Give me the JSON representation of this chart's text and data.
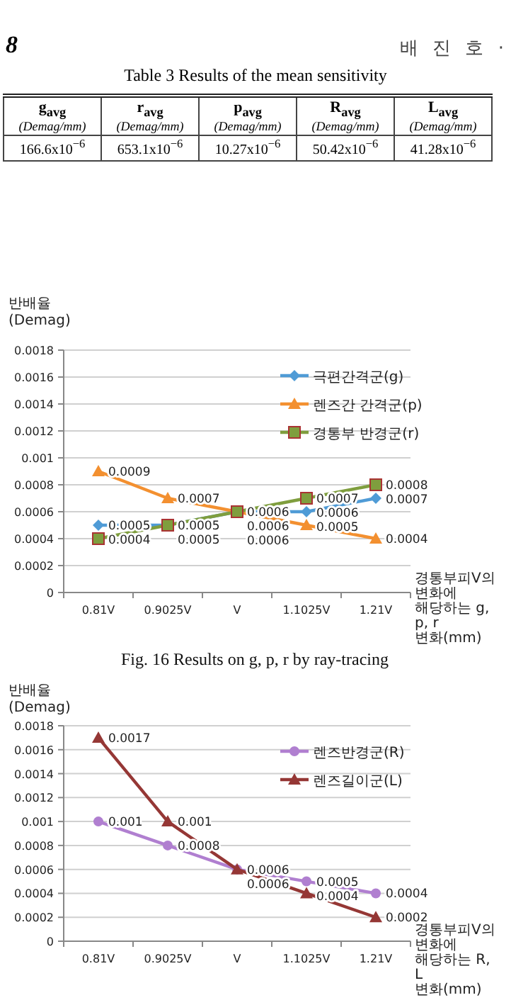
{
  "chart_data": [
    {
      "type": "other",
      "annotations": [
        "8",
        "배 진 호 ·"
      ]
    },
    {
      "type": "other",
      "title": "Table 3 Results of the mean sensitivity",
      "categories": [
        "g$_{avg}$ (Demag/mm)",
        "r$_{avg}$ (Demag/mm)",
        "p$_{avg}$ (Demag/mm)",
        "R$_{avg}$ (Demag/mm)",
        "L$_{avg}$ (Demag/mm)"
      ],
      "annotations": [
        "166.6x10$^{−6}$",
        "653.1x10$^{−6}$",
        "10.27x10$^{−6}$",
        "50.42x10$^{−6}$",
        "41.28x10$^{−6}$"
      ]
    },
    {
      "type": "line",
      "title": "Fig. 16 Results on g, p, r by ray-tracing",
      "ylabel": "반배율 (Demag)",
      "xlabel": "경통부피V의 변화에 해당하는 g, p, r 변화(mm)",
      "categories": [
        "0.81V",
        "0.9025V",
        "V",
        "1.1025V",
        "1.21V"
      ],
      "ylim": [
        0,
        0.0018
      ],
      "yticks": [
        0,
        0.0002,
        0.0004,
        0.0006,
        0.0008,
        0.001,
        0.0012,
        0.0014,
        0.0016,
        0.0018
      ],
      "grid": "y",
      "legend": "top right",
      "data_labels": true,
      "series": [
        {
          "name": "극편간격군(g)",
          "color": "#4f9bd6",
          "marker": "diamond",
          "values": [
            0.0005,
            0.0005,
            0.0006,
            0.0006,
            0.0007
          ]
        },
        {
          "name": "렌즈간 간격군(p)",
          "color": "#f39030",
          "marker": "triangle",
          "values": [
            0.0009,
            0.0007,
            0.0006,
            0.0005,
            0.0004
          ]
        },
        {
          "name": "경통부 반경군(r)",
          "color": "#7f9e3e",
          "marker": "square",
          "values": [
            0.0004,
            0.0005,
            0.0006,
            0.0007,
            0.0008
          ]
        }
      ]
    },
    {
      "type": "line",
      "ylabel": "반배율 (Demag)",
      "xlabel": "경통부피V의 변화에 해당하는 R, L 변화(mm)",
      "categories": [
        "0.81V",
        "0.9025V",
        "V",
        "1.1025V",
        "1.21V"
      ],
      "ylim": [
        0,
        0.0018
      ],
      "yticks": [
        0,
        0.0002,
        0.0004,
        0.0006,
        0.0008,
        0.001,
        0.0012,
        0.0014,
        0.0016,
        0.0018
      ],
      "grid": "y",
      "legend": "top right",
      "data_labels": true,
      "series": [
        {
          "name": "렌즈반경군(R)",
          "color": "#b07fd0",
          "marker": "circle",
          "values": [
            0.001,
            0.0008,
            0.0006,
            0.0005,
            0.0004
          ]
        },
        {
          "name": "렌즈길이군(L)",
          "color": "#953735",
          "marker": "triangle",
          "values": [
            0.0017,
            0.001,
            0.0006,
            0.0004,
            0.0002
          ]
        }
      ]
    }
  ]
}
